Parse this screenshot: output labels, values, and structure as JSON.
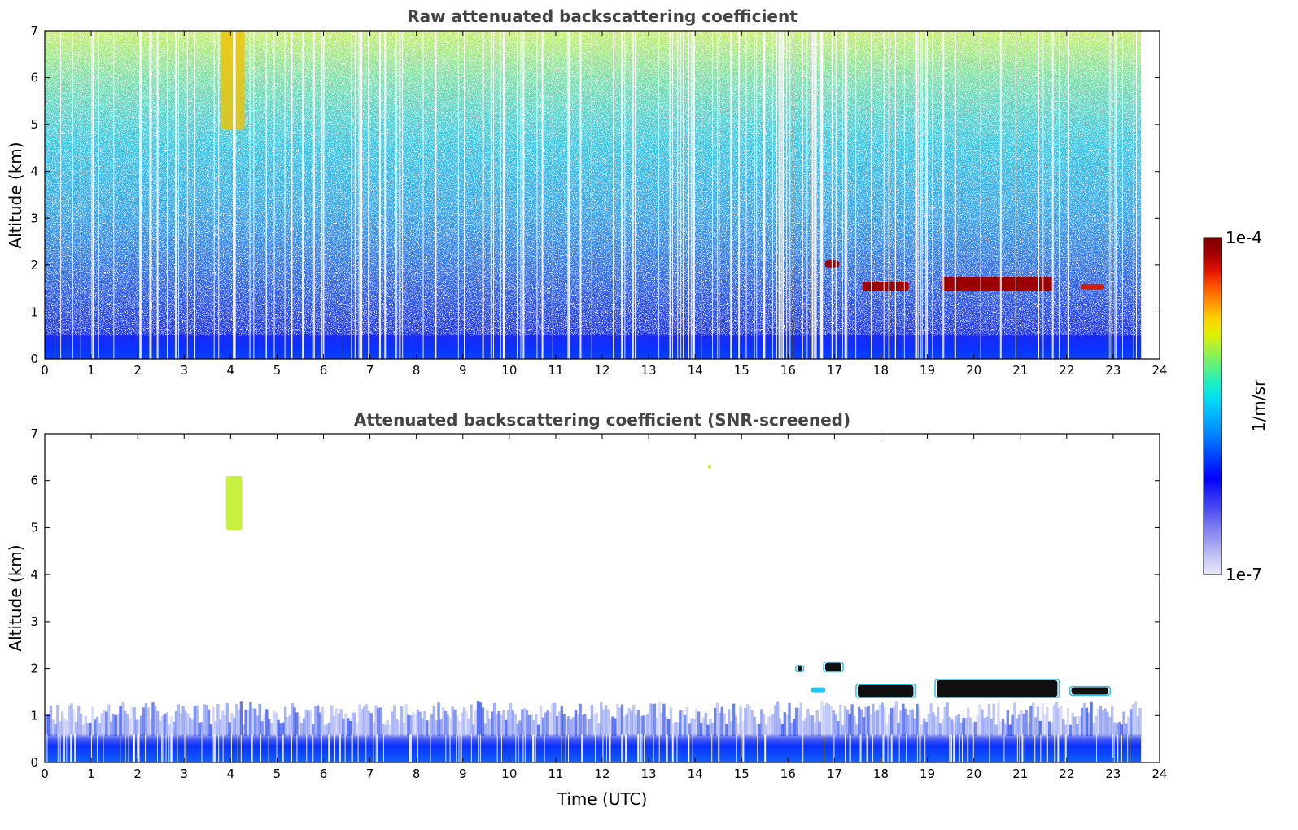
{
  "chart_data": [
    {
      "type": "heatmap",
      "title": "Raw attenuated backscattering coefficient",
      "xlabel": "",
      "ylabel": "Altitude (km)",
      "xlim": [
        0,
        24
      ],
      "ylim": [
        0,
        7
      ],
      "x_ticks": [
        "0",
        "1",
        "2",
        "3",
        "4",
        "5",
        "6",
        "7",
        "8",
        "9",
        "10",
        "11",
        "12",
        "13",
        "14",
        "15",
        "16",
        "17",
        "18",
        "19",
        "20",
        "21",
        "22",
        "23",
        "24"
      ],
      "y_ticks": [
        "0",
        "1",
        "2",
        "3",
        "4",
        "5",
        "6",
        "7"
      ],
      "data_end_time": 23.6,
      "features": [
        {
          "kind": "boundary-layer",
          "t_start": 0,
          "t_end": 23.6,
          "z_bottom": 0,
          "z_top": 0.5,
          "level": "high-blue"
        },
        {
          "kind": "noisy-signal",
          "t_start": 0,
          "t_end": 23.6,
          "z_bottom": 0.5,
          "z_top": 7,
          "level": "blue-to-yellow-with-altitude"
        },
        {
          "kind": "cirrus",
          "t_start": 3.8,
          "t_end": 4.3,
          "z_bottom": 4.9,
          "z_top": 7.0,
          "level": "yellow-red"
        },
        {
          "kind": "cloud",
          "t_start": 16.8,
          "t_end": 17.1,
          "z_bottom": 1.95,
          "z_top": 2.1,
          "level": "dark-red"
        },
        {
          "kind": "cloud",
          "t_start": 17.6,
          "t_end": 18.6,
          "z_bottom": 1.45,
          "z_top": 1.65,
          "level": "dark-red"
        },
        {
          "kind": "cloud",
          "t_start": 19.3,
          "t_end": 21.7,
          "z_bottom": 1.45,
          "z_top": 1.75,
          "level": "dark-red"
        },
        {
          "kind": "cloud",
          "t_start": 22.3,
          "t_end": 22.8,
          "z_bottom": 1.48,
          "z_top": 1.6,
          "level": "red"
        }
      ]
    },
    {
      "type": "heatmap",
      "title": "Attenuated backscattering coefficient (SNR-screened)",
      "xlabel": "Time (UTC)",
      "ylabel": "Altitude (km)",
      "xlim": [
        0,
        24
      ],
      "ylim": [
        0,
        7
      ],
      "x_ticks": [
        "0",
        "1",
        "2",
        "3",
        "4",
        "5",
        "6",
        "7",
        "8",
        "9",
        "10",
        "11",
        "12",
        "13",
        "14",
        "15",
        "16",
        "17",
        "18",
        "19",
        "20",
        "21",
        "22",
        "23",
        "24"
      ],
      "y_ticks": [
        "0",
        "1",
        "2",
        "3",
        "4",
        "5",
        "6",
        "7"
      ],
      "data_end_time": 23.6,
      "features": [
        {
          "kind": "boundary-layer",
          "t_start": 0,
          "t_end": 23.6,
          "z_bottom": 0,
          "z_top": 0.6,
          "level": "high-blue"
        },
        {
          "kind": "cirrus",
          "t_start": 3.9,
          "t_end": 4.25,
          "z_bottom": 4.95,
          "z_top": 6.1,
          "level": "yellow-green"
        },
        {
          "kind": "cloud",
          "t_start": 16.2,
          "t_end": 16.3,
          "z_bottom": 1.95,
          "z_top": 2.05,
          "level": "black"
        },
        {
          "kind": "cloud",
          "t_start": 16.8,
          "t_end": 17.15,
          "z_bottom": 1.95,
          "z_top": 2.12,
          "level": "black"
        },
        {
          "kind": "cloud",
          "t_start": 16.5,
          "t_end": 16.8,
          "z_bottom": 1.48,
          "z_top": 1.6,
          "level": "cyan"
        },
        {
          "kind": "cloud",
          "t_start": 17.5,
          "t_end": 18.7,
          "z_bottom": 1.4,
          "z_top": 1.65,
          "level": "black"
        },
        {
          "kind": "cloud",
          "t_start": 19.2,
          "t_end": 21.8,
          "z_bottom": 1.4,
          "z_top": 1.75,
          "level": "black"
        },
        {
          "kind": "cloud",
          "t_start": 22.1,
          "t_end": 22.9,
          "z_bottom": 1.45,
          "z_top": 1.6,
          "level": "black"
        },
        {
          "kind": "speck",
          "t_start": 14.28,
          "t_end": 14.35,
          "z_bottom": 6.25,
          "z_top": 6.35,
          "level": "yellow-green"
        }
      ]
    }
  ],
  "colorbar": {
    "label": "1/m/sr",
    "max_label": "1e-4",
    "min_label": "1e-7",
    "scale": "log",
    "range": [
      1e-07,
      0.0001
    ],
    "colors": [
      "#e8e8fa",
      "#c8c8f5",
      "#a0a0f0",
      "#7a7af0",
      "#5050f0",
      "#2a2af5",
      "#0000ff",
      "#0030ff",
      "#0060ff",
      "#0090ff",
      "#00b8ff",
      "#00e0f0",
      "#20f0c0",
      "#60f080",
      "#a0f040",
      "#e0f000",
      "#ffd000",
      "#ff9000",
      "#ff5000",
      "#e01000",
      "#a00000",
      "#800000"
    ]
  }
}
